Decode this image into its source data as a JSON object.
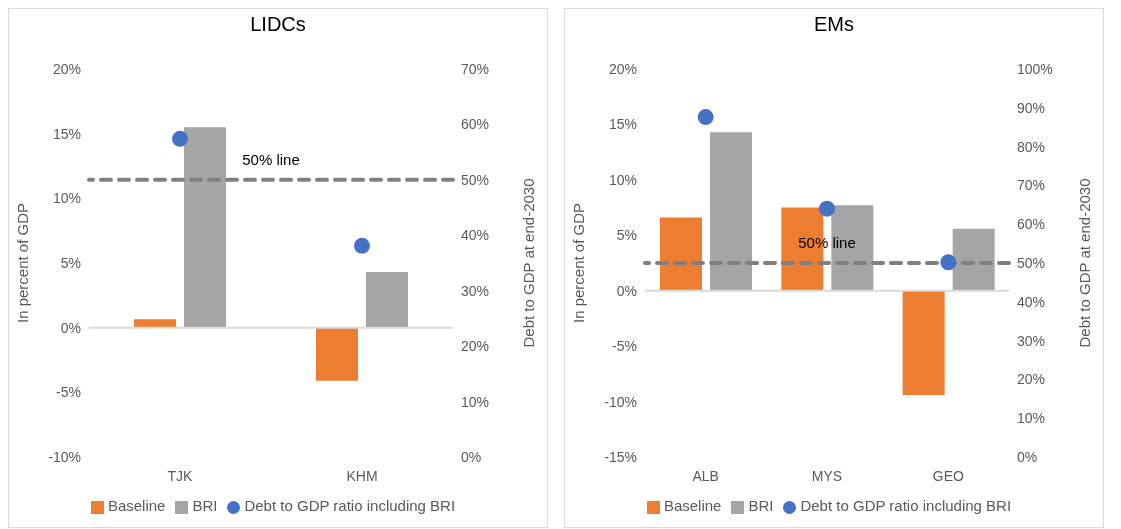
{
  "chart_data": [
    {
      "type": "bar",
      "title": "LIDCs",
      "categories": [
        "TJK",
        "KHM"
      ],
      "ylabel": "In percent of GDP",
      "y2label": "Debt to GDP at end-2030",
      "series": [
        {
          "name": "Baseline",
          "color": "#ed7d31",
          "values": [
            0.65,
            -4.1
          ]
        },
        {
          "name": "BRI",
          "color": "#a5a5a5",
          "values": [
            15.5,
            4.3
          ]
        },
        {
          "name": "Debt to GDP ratio including BRI",
          "type": "scatter",
          "axis": "y2",
          "color": "#4472c4",
          "values": [
            57.4,
            38.1
          ]
        }
      ],
      "ylim": [
        -10,
        20
      ],
      "yticks": [
        {
          "value": -10,
          "label": "-10%"
        },
        {
          "value": -5,
          "label": "-5%"
        },
        {
          "value": 0,
          "label": "0%"
        },
        {
          "value": 5,
          "label": "5%"
        },
        {
          "value": 10,
          "label": "10%"
        },
        {
          "value": 15,
          "label": "15%"
        },
        {
          "value": 20,
          "label": "20%"
        }
      ],
      "y2lim": [
        0,
        70
      ],
      "y2ticks": [
        {
          "value": 0,
          "label": "0%"
        },
        {
          "value": 10,
          "label": "10%"
        },
        {
          "value": 20,
          "label": "20%"
        },
        {
          "value": 30,
          "label": "30%"
        },
        {
          "value": 40,
          "label": "40%"
        },
        {
          "value": 50,
          "label": "50%"
        },
        {
          "value": 60,
          "label": "60%"
        },
        {
          "value": 70,
          "label": "70%"
        }
      ],
      "ref_lines": [
        {
          "axis": "y2",
          "value": 50,
          "label": "50% line",
          "color": "#7f7f7f",
          "line_style": "dashed"
        }
      ],
      "legend": "bottom",
      "grid": false,
      "marker": "circle"
    },
    {
      "type": "bar",
      "title": "EMs",
      "categories": [
        "ALB",
        "MYS",
        "GEO"
      ],
      "ylabel": "In percent of GDP",
      "y2label": "Debt to GDP at end-2030",
      "series": [
        {
          "name": "Baseline",
          "color": "#ed7d31",
          "values": [
            6.6,
            7.5,
            -9.4
          ]
        },
        {
          "name": "BRI",
          "color": "#a5a5a5",
          "values": [
            14.3,
            7.7,
            5.6
          ]
        },
        {
          "name": "Debt to GDP ratio including BRI",
          "type": "scatter",
          "axis": "y2",
          "color": "#4472c4",
          "values": [
            87.6,
            64.0,
            50.2
          ]
        }
      ],
      "ylim": [
        -15,
        20
      ],
      "yticks": [
        {
          "value": -15,
          "label": "-15%"
        },
        {
          "value": -10,
          "label": "-10%"
        },
        {
          "value": -5,
          "label": "-5%"
        },
        {
          "value": 0,
          "label": "0%"
        },
        {
          "value": 5,
          "label": "5%"
        },
        {
          "value": 10,
          "label": "10%"
        },
        {
          "value": 15,
          "label": "15%"
        },
        {
          "value": 20,
          "label": "20%"
        }
      ],
      "y2lim": [
        0,
        100
      ],
      "y2ticks": [
        {
          "value": 0,
          "label": "0%"
        },
        {
          "value": 10,
          "label": "10%"
        },
        {
          "value": 20,
          "label": "20%"
        },
        {
          "value": 30,
          "label": "30%"
        },
        {
          "value": 40,
          "label": "40%"
        },
        {
          "value": 50,
          "label": "50%"
        },
        {
          "value": 60,
          "label": "60%"
        },
        {
          "value": 70,
          "label": "70%"
        },
        {
          "value": 80,
          "label": "80%"
        },
        {
          "value": 90,
          "label": "90%"
        },
        {
          "value": 100,
          "label": "100%"
        }
      ],
      "ref_lines": [
        {
          "axis": "y2",
          "value": 50,
          "label": "50% line",
          "color": "#7f7f7f",
          "line_style": "dashed"
        }
      ],
      "legend": "bottom",
      "grid": false,
      "marker": "circle"
    }
  ]
}
